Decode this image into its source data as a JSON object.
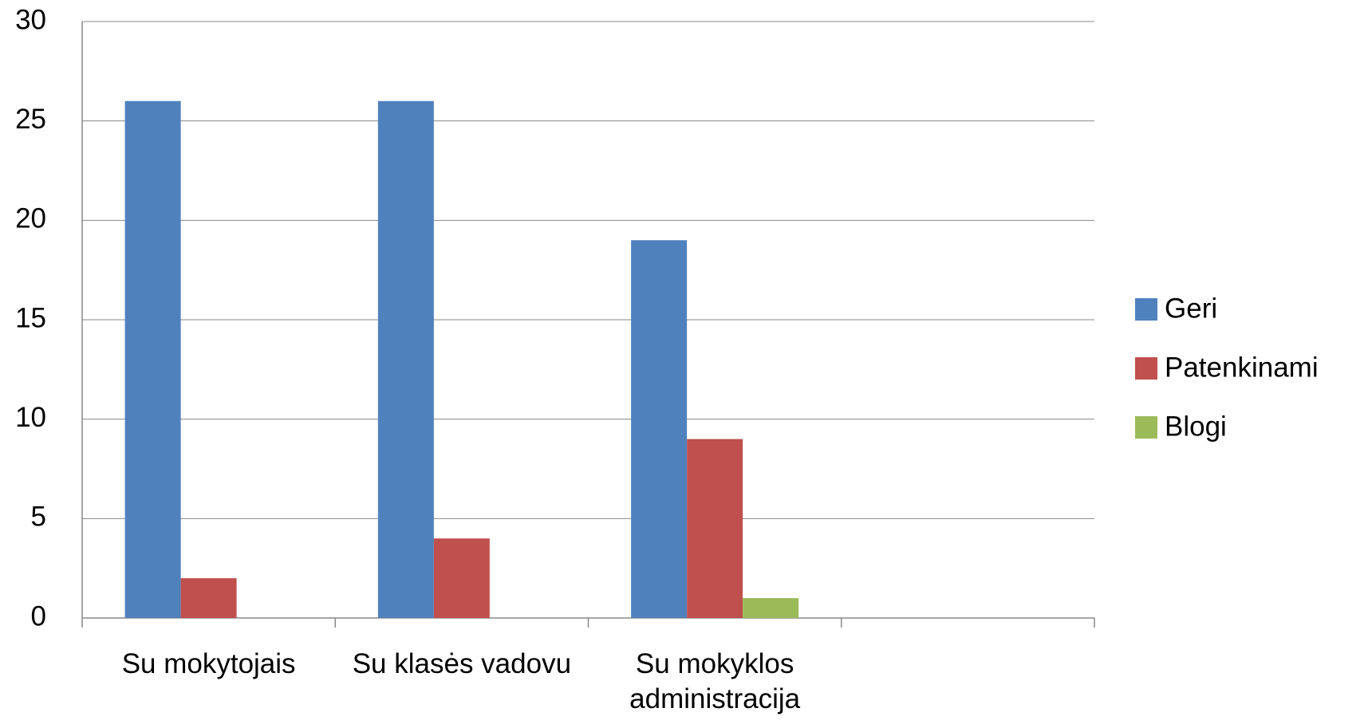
{
  "chart_data": {
    "type": "bar",
    "categories": [
      "Su mokytojais",
      "Su klasės vadovu",
      "Su mokyklos administracija",
      null
    ],
    "series": [
      {
        "name": "Geri",
        "color": "#4f81bd",
        "values": [
          26,
          26,
          19,
          null
        ]
      },
      {
        "name": "Patenkinami",
        "color": "#c0504d",
        "values": [
          2,
          4,
          9,
          null
        ]
      },
      {
        "name": "Blogi",
        "color": "#9bbb59",
        "values": [
          0,
          0,
          1,
          null
        ]
      }
    ],
    "ylim": [
      0,
      30
    ],
    "yticks": [
      0,
      5,
      10,
      15,
      20,
      25,
      30
    ],
    "grid": true,
    "legend": "right"
  }
}
